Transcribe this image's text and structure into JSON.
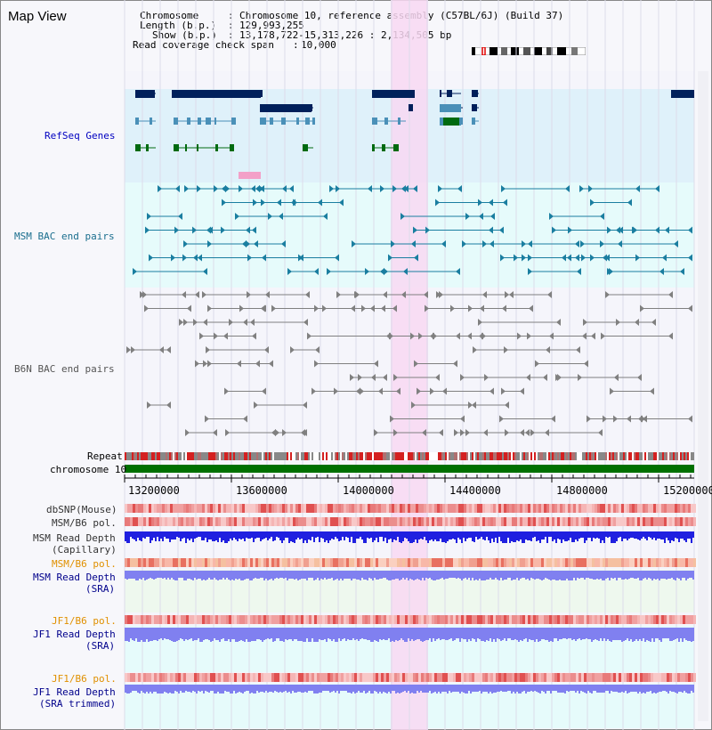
{
  "app": {
    "title": "Map View"
  },
  "header": {
    "chromosome_key": "Chromosome",
    "chromosome_value": "Chromosome 10, reference assembly (C57BL/6J) (Build 37)",
    "length_key": "Length (b.p.)",
    "length_value": "129,993,255",
    "show_key": "Show (b.p.)",
    "show_value": "13,178,722-15,313,226 : 2,134,505 bp",
    "coverage_key": "Read coverage check span",
    "coverage_value": "10,000"
  },
  "tracks": {
    "refseq": "RefSeq Genes",
    "msm_bac": "MSM BAC end pairs",
    "b6n_bac": "B6N BAC end pairs",
    "repeat": "Repeat",
    "chromosome": "chromosome 10",
    "dbsnp": "dbSNP(Mouse)",
    "msm_b6_pol_1": "MSM/B6 pol.",
    "msm_read_depth_cap_1": "MSM Read Depth",
    "msm_read_depth_cap_2": "(Capillary)",
    "msm_b6_pol_2": "MSM/B6 pol.",
    "msm_read_depth_sra_1": "MSM Read Depth",
    "msm_read_depth_sra_2": "(SRA)",
    "jf1_b6_pol_1": "JF1/B6 pol.",
    "jf1_read_depth_sra_1": "JF1 Read Depth",
    "jf1_read_depth_sra_2": "(SRA)",
    "jf1_b6_pol_2": "JF1/B6 pol.",
    "jf1_read_depth_trim_1": "JF1 Read Depth",
    "jf1_read_depth_trim_2": "(SRA trimmed)"
  },
  "ruler": {
    "ticks": [
      "13200000",
      "13600000",
      "14000000",
      "14400000",
      "14800000",
      "15200000"
    ]
  },
  "colors": {
    "refseq_bg": "#dff1fa",
    "msm_bac_bg": "#e6fbfb",
    "highlight": "#f8d8f2",
    "msm_label": "#1a6e8e",
    "refseq_label": "#0000c0",
    "orange_label": "#e09000",
    "navy_label": "#00008b",
    "chromosome_bar": "#007000"
  }
}
